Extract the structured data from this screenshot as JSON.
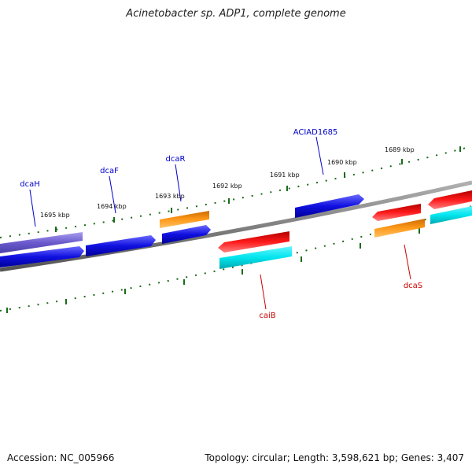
{
  "title": "Acinetobacter sp. ADP1, complete genome",
  "footer": {
    "accession": "Accession: NC_005966",
    "topology": "Topology: circular; Length: 3,598,621 bp; Genes: 3,407"
  },
  "ruler_labels": [
    "1695 kbp",
    "1694 kbp",
    "1693 kbp",
    "1692 kbp",
    "1691 kbp",
    "1690 kbp",
    "1689 kbp"
  ],
  "gene_labels": {
    "forward": [
      "dcaH",
      "dcaF",
      "dcaR",
      "ACIAD1685"
    ],
    "reverse": [
      "caiB",
      "dcaS"
    ]
  },
  "colors": {
    "forward_label": "#0000cc",
    "reverse_label": "#cc0000",
    "tick": "#1a6b1a",
    "backbone": "#808080",
    "blue": "#1010e0",
    "purple": "#6a5acd",
    "orange": "#ff8c00",
    "red": "#e00000",
    "cyan": "#00e5ee"
  }
}
